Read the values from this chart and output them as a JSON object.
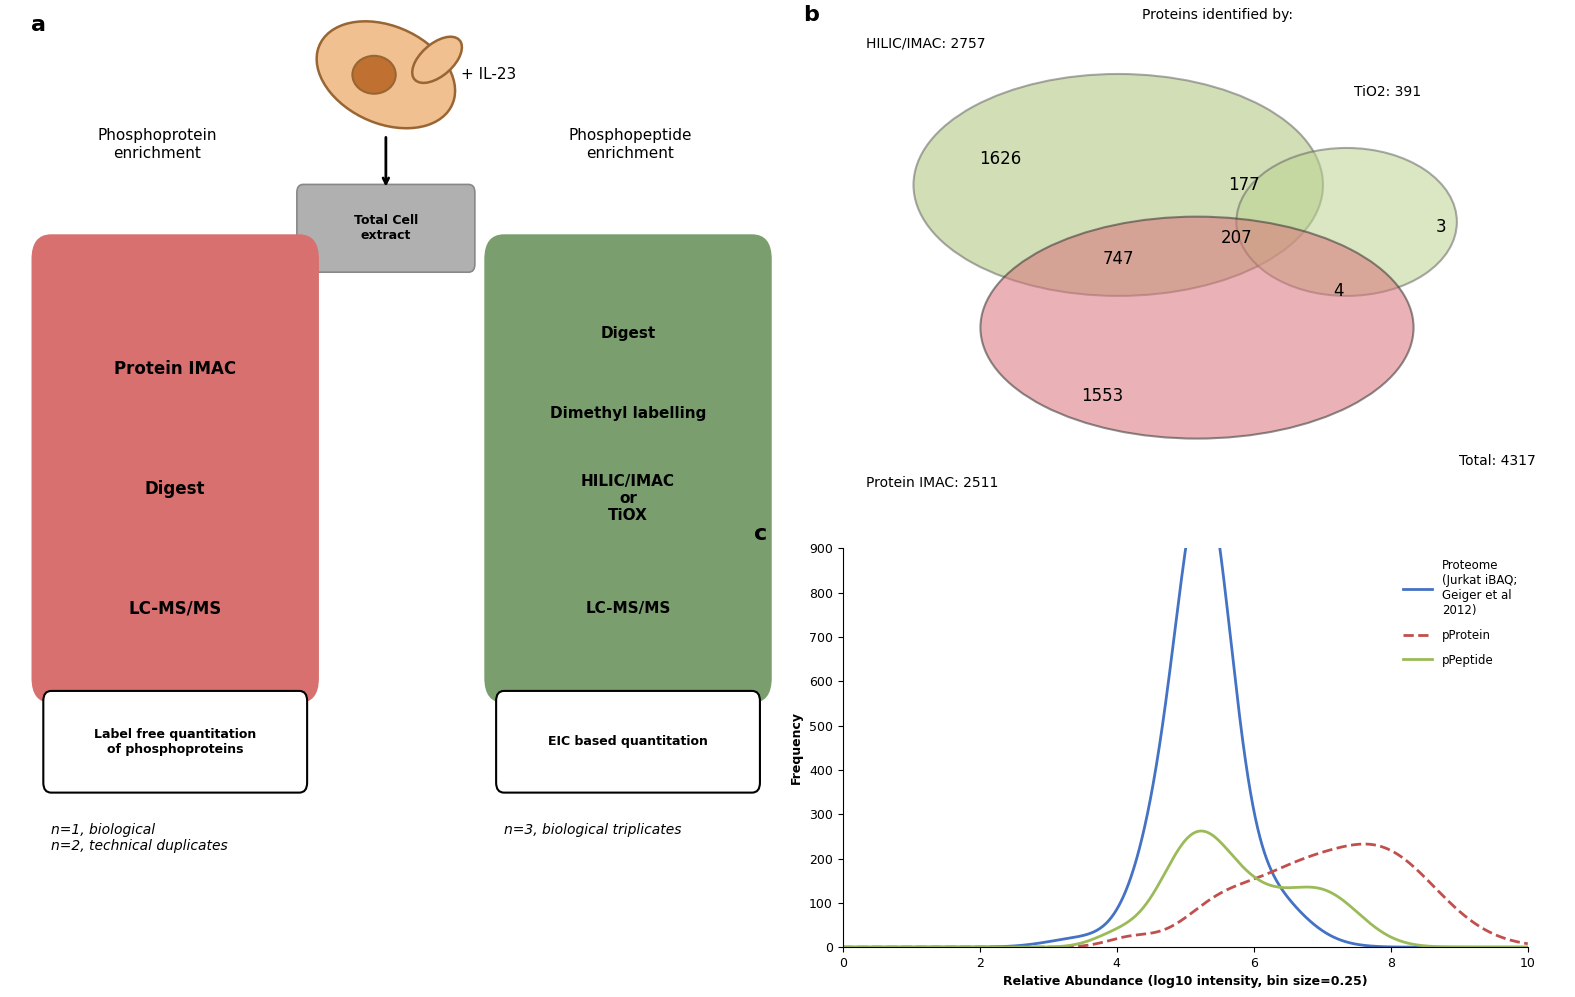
{
  "panel_a": {
    "cell_icon_text": "+ IL-23",
    "box_center_text": "Total Cell\nextract",
    "left_title": "Phosphoprotein\nenrichment",
    "right_title": "Phosphopeptide\nenrichment",
    "left_box_color": "#d97070",
    "right_box_color": "#7a9e6e",
    "gray_box_color": "#b0b0b0",
    "left_box_items": [
      "Protein IMAC",
      "Digest",
      "LC-MS/MS"
    ],
    "right_box_items": [
      "Digest",
      "Dimethyl labelling",
      "HILIC/IMAC\nor\nTiOX",
      "LC-MS/MS"
    ],
    "left_label": "Label free quantitation\nof phosphoproteins",
    "right_label": "EIC based quantitation",
    "left_footnote": "n=1, biological\nn=2, technical duplicates",
    "right_footnote": "n=3, biological triplicates"
  },
  "panel_b": {
    "title": "Proteins identified by:",
    "hilic_label": "HILIC/IMAC: 2757",
    "tio2_label": "TiO2: 391",
    "protein_imac_label": "Protein IMAC: 2511",
    "total_label": "Total: 4317",
    "numbers": {
      "hilic_only": "1626",
      "tio2_only": "3",
      "protein_imac_only": "1553",
      "hilic_tio2": "177",
      "hilic_protein_imac": "747",
      "tio2_protein_imac": "4",
      "all_three": "207"
    },
    "hilic_color": "#adc47a",
    "tio2_color": "#bdd490",
    "protein_imac_color": "#d9747a"
  },
  "panel_c": {
    "xlabel": "Relative Abundance (log10 intensity, bin size=0.25)",
    "ylabel": "Frequency",
    "ylim": [
      0,
      900
    ],
    "xlim": [
      0,
      10
    ],
    "yticks": [
      0,
      100,
      200,
      300,
      400,
      500,
      600,
      700,
      800,
      900
    ],
    "xticks": [
      0,
      2,
      4,
      6,
      8,
      10
    ],
    "proteome_color": "#4472c4",
    "pprotein_color": "#c0504d",
    "ppeptide_color": "#9bbb59"
  }
}
